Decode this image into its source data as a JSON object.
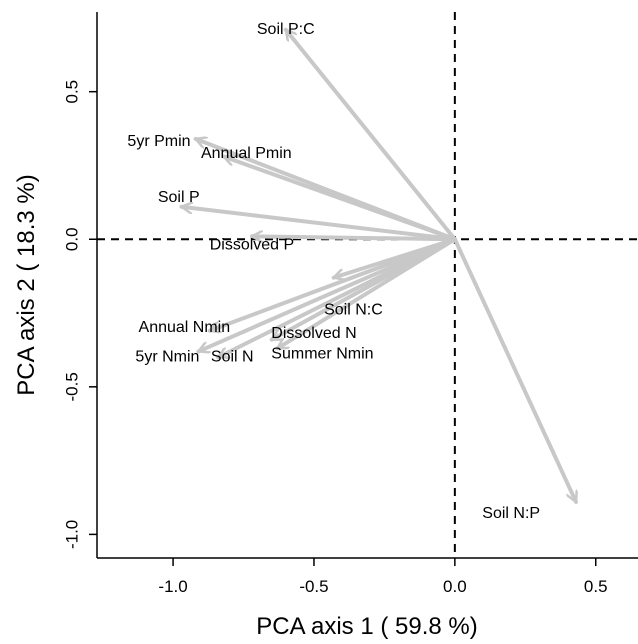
{
  "chart_data": {
    "type": "scatter",
    "subtype": "pca-biplot-arrows",
    "xlabel": "PCA axis 1 ( 59.8 %)",
    "ylabel": "PCA axis 2 ( 18.3 %)",
    "xlim": [
      -1.27,
      0.65
    ],
    "ylim": [
      -1.08,
      0.77
    ],
    "xticks": [
      -1.0,
      -0.5,
      0.0,
      0.5
    ],
    "yticks": [
      -1.0,
      -0.5,
      0.0,
      0.5
    ],
    "xtick_labels": [
      "-1.0",
      "-0.5",
      "0.0",
      "0.5"
    ],
    "ytick_labels": [
      "-1.0",
      "-0.5",
      "0.0",
      "0.5"
    ],
    "reference_lines": {
      "x": 0,
      "y": 0,
      "style": "dashed"
    },
    "arrow_color": "#c8c8c8",
    "origin": [
      0,
      0
    ],
    "vectors": [
      {
        "name": "Soil P:C",
        "x": -0.6,
        "y": 0.71
      },
      {
        "name": "5yr Pmin",
        "x": -0.92,
        "y": 0.34
      },
      {
        "name": "Annual Pmin",
        "x": -0.82,
        "y": 0.28
      },
      {
        "name": "Soil P",
        "x": -0.97,
        "y": 0.11
      },
      {
        "name": "Dissolved P",
        "x": -0.72,
        "y": 0.01
      },
      {
        "name": "Soil N:C",
        "x": -0.43,
        "y": -0.13
      },
      {
        "name": "Dissolved N",
        "x": -0.65,
        "y": -0.34
      },
      {
        "name": "Annual Nmin",
        "x": -0.87,
        "y": -0.31
      },
      {
        "name": "5yr Nmin",
        "x": -0.91,
        "y": -0.38
      },
      {
        "name": "Soil N",
        "x": -0.84,
        "y": -0.4
      },
      {
        "name": "Summer Nmin",
        "x": -0.63,
        "y": -0.37
      },
      {
        "name": "Soil N:P",
        "x": 0.43,
        "y": -0.89
      }
    ],
    "labels": [
      {
        "text": "Soil P:C",
        "x": -0.6,
        "y": 0.71
      },
      {
        "text": "5yr Pmin",
        "x": -1.05,
        "y": 0.33
      },
      {
        "text": "Annual Pmin",
        "x": -0.74,
        "y": 0.29
      },
      {
        "text": "Soil P",
        "x": -0.98,
        "y": 0.14
      },
      {
        "text": "Dissolved P",
        "x": -0.72,
        "y": -0.02
      },
      {
        "text": "Soil N:C",
        "x": -0.36,
        "y": -0.24
      },
      {
        "text": "Dissolved N",
        "x": -0.5,
        "y": -0.32
      },
      {
        "text": "Annual Nmin",
        "x": -0.96,
        "y": -0.3
      },
      {
        "text": "5yr Nmin",
        "x": -1.02,
        "y": -0.4
      },
      {
        "text": "Soil N",
        "x": -0.79,
        "y": -0.4
      },
      {
        "text": "Summer Nmin",
        "x": -0.47,
        "y": -0.39
      },
      {
        "text": "Soil N:P",
        "x": 0.2,
        "y": -0.93
      }
    ]
  }
}
